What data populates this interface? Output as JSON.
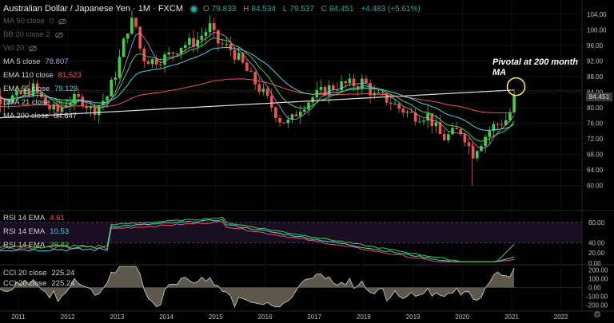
{
  "header": {
    "title": "Australian Dollar / Japanese Yen · 1M · FXCM",
    "ohlc": [
      {
        "label": "O",
        "value": "79.833"
      },
      {
        "label": "H",
        "value": "84.534"
      },
      {
        "label": "L",
        "value": "79.537"
      },
      {
        "label": "C",
        "value": "84.451"
      }
    ],
    "change": "+4.483 (+5.61%)"
  },
  "legend": [
    {
      "name": "MA 50 close",
      "value": "0",
      "color": "#8a8a8a",
      "hidden": true
    },
    {
      "name": "BB 20 close 2",
      "value": "",
      "color": "#8a8a8a",
      "hidden": true
    },
    {
      "name": "Vol 20",
      "value": "",
      "color": "#8a8a8a",
      "hidden": true
    },
    {
      "name": "MA 5 close",
      "value": "78.807",
      "color": "#b39ddb",
      "hidden": false
    },
    {
      "name": "EMA 110 close",
      "value": "81.523",
      "color": "#ef5350",
      "hidden": false
    },
    {
      "name": "EMA 55 close",
      "value": "79.123",
      "color": "#4dd0e1",
      "hidden": false
    },
    {
      "name": "EMA 21 close",
      "value": "76.732",
      "color": "#43d045",
      "hidden": false
    },
    {
      "name": "MA 200 close",
      "value": "84.647",
      "color": "#e0e0e0",
      "hidden": false
    }
  ],
  "annotation": "Pivotal at 200 month MA",
  "last_price": "84.451",
  "rsi_legend": [
    {
      "name": "RSI 14 EMA",
      "value": "4.61",
      "color": "#ef5350"
    },
    {
      "name": "RSI 14 EMA",
      "value": "10.53",
      "color": "#4dd0e1"
    },
    {
      "name": "RSI 14 EMA",
      "value": "38.83",
      "color": "#43d045"
    }
  ],
  "cci_legend": [
    {
      "name": "CCI 20 close",
      "value": "225.24",
      "color": "#d0d0d0"
    },
    {
      "name": "CCI 20 close",
      "value": "225.24",
      "color": "#d0d0d0"
    }
  ],
  "icons": {
    "visibility": "eye-slash-icon",
    "settings": "gear-icon",
    "status": "market-status-icon"
  },
  "colors": {
    "up": "#43d045",
    "down": "#ef5350",
    "background": "#000000",
    "highlight_circle": "#ffeb3b"
  },
  "chart_data": [
    {
      "type": "candlestick",
      "title": "Australian Dollar / Japanese Yen · 1M · FXCM",
      "x": [
        "2011",
        "2012",
        "2013",
        "2014",
        "2015",
        "2016",
        "2017",
        "2018",
        "2019",
        "2020",
        "2021",
        "2022"
      ],
      "ylim": [
        54,
        106
      ],
      "y_ticks": [
        "104.00",
        "100.00",
        "96.00",
        "92.00",
        "88.00",
        "84.00",
        "80.00",
        "76.00",
        "72.00",
        "68.00",
        "64.00",
        "60.00"
      ],
      "price_path": [
        [
          2010.0,
          82
        ],
        [
          2010.3,
          84
        ],
        [
          2010.7,
          82
        ],
        [
          2011.0,
          83
        ],
        [
          2011.3,
          85
        ],
        [
          2011.6,
          80
        ],
        [
          2011.8,
          79
        ],
        [
          2012.0,
          82
        ],
        [
          2012.3,
          82
        ],
        [
          2012.5,
          79
        ],
        [
          2012.8,
          83
        ],
        [
          2013.0,
          90
        ],
        [
          2013.2,
          100
        ],
        [
          2013.35,
          103
        ],
        [
          2013.5,
          93
        ],
        [
          2013.7,
          92
        ],
        [
          2014.0,
          93
        ],
        [
          2014.3,
          96
        ],
        [
          2014.6,
          97
        ],
        [
          2014.9,
          101
        ],
        [
          2015.0,
          97
        ],
        [
          2015.3,
          95
        ],
        [
          2015.5,
          92
        ],
        [
          2015.7,
          88
        ],
        [
          2016.0,
          83
        ],
        [
          2016.3,
          77
        ],
        [
          2016.5,
          76
        ],
        [
          2016.7,
          80
        ],
        [
          2017.0,
          83
        ],
        [
          2017.3,
          85
        ],
        [
          2017.6,
          86
        ],
        [
          2017.9,
          86
        ],
        [
          2018.0,
          87
        ],
        [
          2018.2,
          83
        ],
        [
          2018.5,
          82
        ],
        [
          2018.7,
          80
        ],
        [
          2019.0,
          78
        ],
        [
          2019.3,
          78
        ],
        [
          2019.6,
          72
        ],
        [
          2019.9,
          74
        ],
        [
          2020.0,
          74
        ],
        [
          2020.2,
          68
        ],
        [
          2020.3,
          70
        ],
        [
          2020.6,
          75
        ],
        [
          2020.9,
          77
        ],
        [
          2021.0,
          79.8
        ],
        [
          2021.09,
          84.45
        ]
      ],
      "series": [
        {
          "name": "MA 5 close",
          "last": 78.807
        },
        {
          "name": "EMA 110 close",
          "last": 81.523
        },
        {
          "name": "EMA 55 close",
          "last": 79.123
        },
        {
          "name": "EMA 21 close",
          "last": 76.732
        },
        {
          "name": "MA 200 close",
          "last": 84.647
        }
      ]
    },
    {
      "type": "line",
      "ylim": [
        0,
        100
      ],
      "y_ticks": [
        "80.00",
        "40.00",
        "20.00",
        "0.00"
      ],
      "series": [
        {
          "name": "RSI 14 EMA",
          "last": 4.61
        },
        {
          "name": "RSI 14 EMA",
          "last": 10.53
        },
        {
          "name": "RSI 14 EMA",
          "last": 38.83
        }
      ]
    },
    {
      "type": "area",
      "ylim": [
        -250,
        250
      ],
      "y_ticks": [
        "200.00",
        "100.00",
        "0.00",
        "-100.00",
        "-200.00"
      ],
      "series": [
        {
          "name": "CCI 20 close",
          "last": 225.24
        }
      ]
    }
  ]
}
